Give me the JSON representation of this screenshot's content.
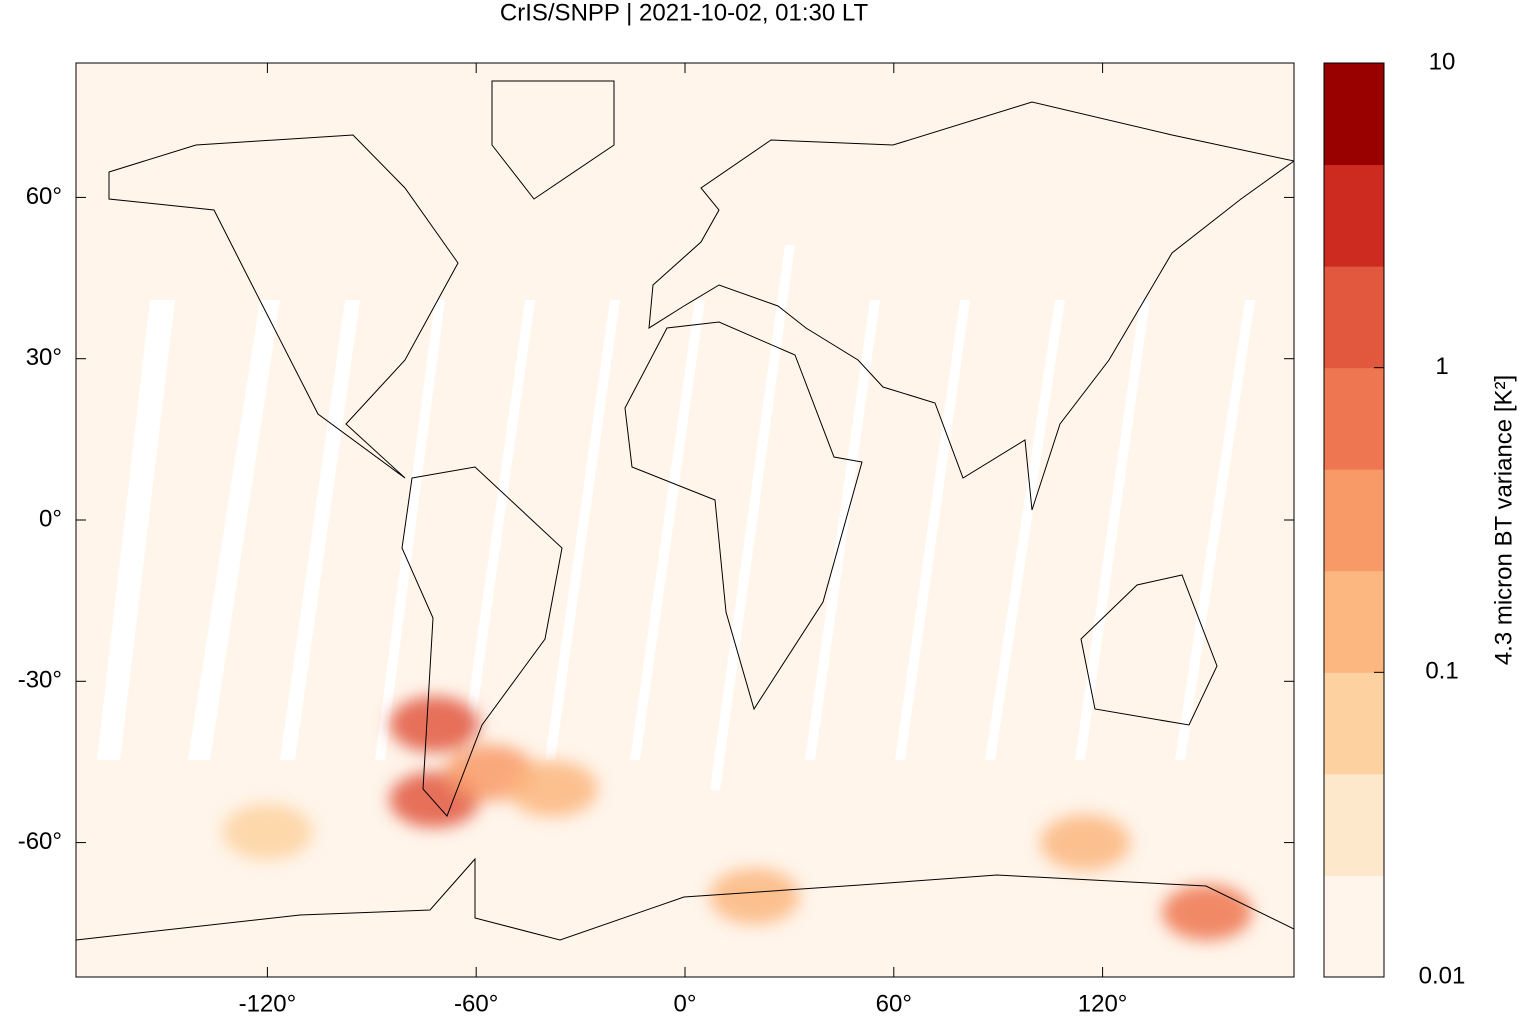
{
  "chart_data": {
    "type": "map",
    "title": "CrIS/SNPP | 2021-10-02, 01:30 LT",
    "xlim": [
      -175,
      175
    ],
    "ylim": [
      -85,
      85
    ],
    "xticks": [
      {
        "value": -120,
        "label": "-120°"
      },
      {
        "value": -60,
        "label": "-60°"
      },
      {
        "value": 0,
        "label": "0°"
      },
      {
        "value": 60,
        "label": "60°"
      },
      {
        "value": 120,
        "label": "120°"
      }
    ],
    "yticks": [
      {
        "value": 60,
        "label": "60°"
      },
      {
        "value": 30,
        "label": "30°"
      },
      {
        "value": 0,
        "label": "0°"
      },
      {
        "value": -30,
        "label": "-30°"
      },
      {
        "value": -60,
        "label": "-60°"
      }
    ],
    "background_color": "#fff5eb",
    "hotspots": [
      {
        "lon": -72,
        "lat": -38,
        "value": 1.5
      },
      {
        "lon": -72,
        "lat": -52,
        "value": 1
      },
      {
        "lon": -56,
        "lat": -47,
        "value": 0.3
      },
      {
        "lon": -38,
        "lat": -50,
        "value": 0.2
      },
      {
        "lon": 150,
        "lat": -73,
        "value": 0.8
      },
      {
        "lon": 115,
        "lat": -60,
        "value": 0.15
      },
      {
        "lon": -120,
        "lat": -58,
        "value": 0.05
      },
      {
        "lon": 20,
        "lat": -70,
        "value": 0.1
      }
    ],
    "colorbar": {
      "label": "4.3 micron BT variance [K²]",
      "log_scale": true,
      "clim": [
        0.01,
        10
      ],
      "ticks": [
        0.01,
        0.1,
        1,
        10
      ],
      "colors": [
        "#fff5eb",
        "#fde8cc",
        "#fdd2a0",
        "#fcb67f",
        "#f89a68",
        "#ee7650",
        "#e2583e",
        "#cd2b1f",
        "#990000"
      ]
    }
  }
}
